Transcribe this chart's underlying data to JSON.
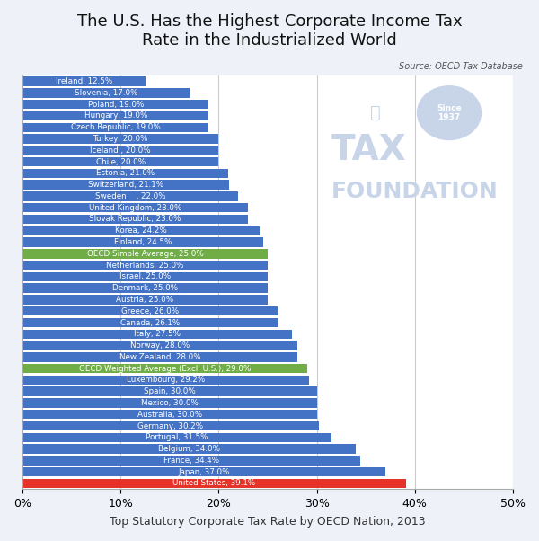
{
  "title": "The U.S. Has the Highest Corporate Income Tax\nRate in the Industrialized World",
  "source": "Source: OECD Tax Database",
  "xlabel": "Top Statutory Corporate Tax Rate by OECD Nation, 2013",
  "categories": [
    "Ireland, 12.5%",
    "Slovenia, 17.0%",
    "Poland, 19.0%",
    "Hungary, 19.0%",
    "Czech Republic, 19.0%",
    "Turkey, 20.0%",
    "Iceland , 20.0%",
    "Chile, 20.0%",
    "Estonia, 21.0%",
    "Switzerland, 21.1%",
    "Sweden    , 22.0%",
    "United Kingdom, 23.0%",
    "Slovak Republic, 23.0%",
    "Korea, 24.2%",
    "Finland, 24.5%",
    "OECD Simple Average, 25.0%",
    "Netherlands, 25.0%",
    "Israel, 25.0%",
    "Denmark, 25.0%",
    "Austria, 25.0%",
    "Greece, 26.0%",
    "Canada, 26.1%",
    "Italy, 27.5%",
    "Norway, 28.0%",
    "New Zealand, 28.0%",
    "OECD Weighted Average (Excl. U.S.), 29.0%",
    "Luxembourg, 29.2%",
    "Spain, 30.0%",
    "Mexico, 30.0%",
    "Australia, 30.0%",
    "Germany, 30.2%",
    "Portugal, 31.5%",
    "Belgium, 34.0%",
    "France, 34.4%",
    "Japan, 37.0%",
    "United States, 39.1%"
  ],
  "values": [
    12.5,
    17.0,
    19.0,
    19.0,
    19.0,
    20.0,
    20.0,
    20.0,
    21.0,
    21.1,
    22.0,
    23.0,
    23.0,
    24.2,
    24.5,
    25.0,
    25.0,
    25.0,
    25.0,
    25.0,
    26.0,
    26.1,
    27.5,
    28.0,
    28.0,
    29.0,
    29.2,
    30.0,
    30.0,
    30.0,
    30.2,
    31.5,
    34.0,
    34.4,
    37.0,
    39.1
  ],
  "bar_colors": [
    "#4472C4",
    "#4472C4",
    "#4472C4",
    "#4472C4",
    "#4472C4",
    "#4472C4",
    "#4472C4",
    "#4472C4",
    "#4472C4",
    "#4472C4",
    "#4472C4",
    "#4472C4",
    "#4472C4",
    "#4472C4",
    "#4472C4",
    "#70AD47",
    "#4472C4",
    "#4472C4",
    "#4472C4",
    "#4472C4",
    "#4472C4",
    "#4472C4",
    "#4472C4",
    "#4472C4",
    "#4472C4",
    "#70AD47",
    "#4472C4",
    "#4472C4",
    "#4472C4",
    "#4472C4",
    "#4472C4",
    "#4472C4",
    "#4472C4",
    "#4472C4",
    "#4472C4",
    "#E63329"
  ],
  "xlim": [
    0,
    50
  ],
  "background_color": "#EEF2F8",
  "plot_bg_color": "#FFFFFF",
  "title_fontsize": 13,
  "label_fontsize": 6.3,
  "watermark_color": "#C8D5E8"
}
